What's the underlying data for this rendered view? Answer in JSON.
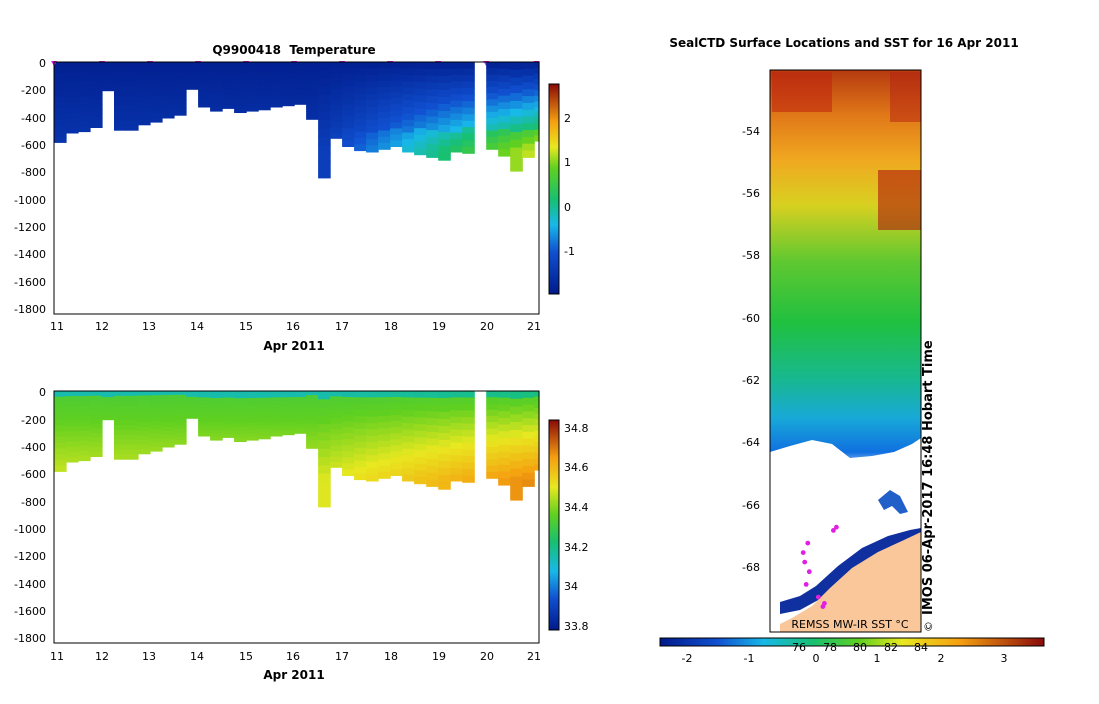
{
  "chart_data": [
    {
      "type": "heatmap",
      "title": "Q9900418  Temperature",
      "xlabel": "Apr 2011",
      "ylabel": "",
      "x_ticks": [
        "11",
        "12",
        "13",
        "14",
        "15",
        "16",
        "17",
        "18",
        "19",
        "20",
        "21"
      ],
      "xlim": [
        11,
        21.1
      ],
      "y_ticks": [
        "0",
        "-200",
        "-400",
        "-600",
        "-800",
        "-1000",
        "-1200",
        "-1400",
        "-1600",
        "-1800"
      ],
      "ylim": [
        -1850,
        0
      ],
      "profile_days": [
        11.0,
        11.25,
        11.5,
        11.75,
        12.0,
        12.25,
        12.5,
        12.75,
        13.0,
        13.25,
        13.5,
        13.75,
        14.0,
        14.25,
        14.5,
        14.75,
        15.0,
        15.25,
        15.5,
        15.75,
        16.0,
        16.25,
        16.5,
        16.75,
        17.0,
        17.25,
        17.5,
        17.75,
        18.0,
        18.25,
        18.5,
        18.75,
        19.0,
        19.25,
        19.5,
        19.75,
        20.0,
        20.25,
        20.5,
        20.75,
        21.0
      ],
      "max_depths": [
        590,
        520,
        510,
        480,
        210,
        500,
        500,
        460,
        440,
        410,
        390,
        200,
        330,
        360,
        340,
        370,
        360,
        350,
        330,
        320,
        310,
        420,
        850,
        560,
        620,
        650,
        660,
        640,
        620,
        660,
        680,
        700,
        720,
        660,
        670,
        0,
        640,
        690,
        800,
        700,
        580
      ],
      "surface_markers_days": [
        11,
        12,
        13,
        14,
        15,
        16,
        17,
        18,
        19,
        20,
        21.05
      ],
      "colorbar": {
        "ticks": [
          "2",
          "1",
          "0",
          "-1"
        ],
        "range": [
          -1.9,
          2.8
        ]
      }
    },
    {
      "type": "heatmap",
      "title": "",
      "xlabel": "Apr 2011",
      "ylabel": "",
      "x_ticks": [
        "11",
        "12",
        "13",
        "14",
        "15",
        "16",
        "17",
        "18",
        "19",
        "20",
        "21"
      ],
      "xlim": [
        11,
        21.1
      ],
      "y_ticks": [
        "0",
        "-200",
        "-400",
        "-600",
        "-800",
        "-1000",
        "-1200",
        "-1400",
        "-1600",
        "-1800"
      ],
      "ylim": [
        -1850,
        0
      ],
      "colorbar": {
        "ticks": [
          "34.8",
          "34.6",
          "34.4",
          "34.2",
          "34",
          "33.8"
        ],
        "range": [
          33.78,
          34.86
        ]
      }
    },
    {
      "type": "heatmap",
      "title": "SealCTD Surface Locations and SST for 16 Apr 2011",
      "y_ticks": [
        "-54",
        "-56",
        "-58",
        "-60",
        "-62",
        "-64",
        "-66",
        "-68"
      ],
      "ylim": [
        -69.8,
        -52.1
      ],
      "side_label": "IMOS 06-Apr-2017 16:48 Hobart Time",
      "footer_label": "REMSS MW-IR SST °C",
      "copyright": "©",
      "colorbar": {
        "ticks": [
          "-2",
          "-1",
          "0",
          "1",
          "2",
          "3"
        ],
        "range": [
          -2.65,
          3.65
        ],
        "overprinted": [
          "76",
          "78",
          "80",
          "82",
          "84"
        ]
      },
      "sea_ice_edge_lat": -64.3,
      "seal_track": [
        [
          -66.6,
          0.42
        ],
        [
          -66.5,
          0.44
        ],
        [
          -67.0,
          0.25
        ],
        [
          -67.3,
          0.22
        ],
        [
          -67.6,
          0.23
        ],
        [
          -67.9,
          0.26
        ],
        [
          -68.3,
          0.24
        ],
        [
          -68.7,
          0.32
        ],
        [
          -68.9,
          0.36
        ],
        [
          -69.0,
          0.35
        ]
      ]
    }
  ]
}
